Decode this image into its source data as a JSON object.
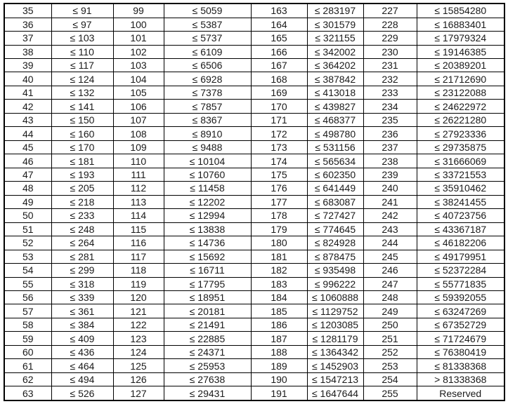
{
  "colors": {
    "border": "#000000",
    "text": "#1a1a1a",
    "background": "#ffffff"
  },
  "table": {
    "description": "index-threshold lookup table, four index/value column pairs",
    "rows": [
      [
        "35",
        "≤ 91",
        "99",
        "≤ 5059",
        "163",
        "≤ 283197",
        "227",
        "≤ 15854280"
      ],
      [
        "36",
        "≤ 97",
        "100",
        "≤ 5387",
        "164",
        "≤ 301579",
        "228",
        "≤ 16883401"
      ],
      [
        "37",
        "≤ 103",
        "101",
        "≤ 5737",
        "165",
        "≤ 321155",
        "229",
        "≤ 17979324"
      ],
      [
        "38",
        "≤ 110",
        "102",
        "≤ 6109",
        "166",
        "≤ 342002",
        "230",
        "≤ 19146385"
      ],
      [
        "39",
        "≤ 117",
        "103",
        "≤ 6506",
        "167",
        "≤ 364202",
        "231",
        "≤ 20389201"
      ],
      [
        "40",
        "≤ 124",
        "104",
        "≤ 6928",
        "168",
        "≤ 387842",
        "232",
        "≤ 21712690"
      ],
      [
        "41",
        "≤ 132",
        "105",
        "≤ 7378",
        "169",
        "≤ 413018",
        "233",
        "≤ 23122088"
      ],
      [
        "42",
        "≤ 141",
        "106",
        "≤ 7857",
        "170",
        "≤ 439827",
        "234",
        "≤ 24622972"
      ],
      [
        "43",
        "≤ 150",
        "107",
        "≤ 8367",
        "171",
        "≤ 468377",
        "235",
        "≤ 26221280"
      ],
      [
        "44",
        "≤ 160",
        "108",
        "≤ 8910",
        "172",
        "≤ 498780",
        "236",
        "≤ 27923336"
      ],
      [
        "45",
        "≤ 170",
        "109",
        "≤ 9488",
        "173",
        "≤ 531156",
        "237",
        "≤ 29735875"
      ],
      [
        "46",
        "≤ 181",
        "110",
        "≤ 10104",
        "174",
        "≤ 565634",
        "238",
        "≤ 31666069"
      ],
      [
        "47",
        "≤ 193",
        "111",
        "≤ 10760",
        "175",
        "≤ 602350",
        "239",
        "≤ 33721553"
      ],
      [
        "48",
        "≤ 205",
        "112",
        "≤ 11458",
        "176",
        "≤ 641449",
        "240",
        "≤ 35910462"
      ],
      [
        "49",
        "≤ 218",
        "113",
        "≤ 12202",
        "177",
        "≤ 683087",
        "241",
        "≤ 38241455"
      ],
      [
        "50",
        "≤ 233",
        "114",
        "≤ 12994",
        "178",
        "≤ 727427",
        "242",
        "≤ 40723756"
      ],
      [
        "51",
        "≤ 248",
        "115",
        "≤ 13838",
        "179",
        "≤ 774645",
        "243",
        "≤ 43367187"
      ],
      [
        "52",
        "≤ 264",
        "116",
        "≤ 14736",
        "180",
        "≤ 824928",
        "244",
        "≤ 46182206"
      ],
      [
        "53",
        "≤ 281",
        "117",
        "≤ 15692",
        "181",
        "≤ 878475",
        "245",
        "≤ 49179951"
      ],
      [
        "54",
        "≤ 299",
        "118",
        "≤ 16711",
        "182",
        "≤ 935498",
        "246",
        "≤ 52372284"
      ],
      [
        "55",
        "≤ 318",
        "119",
        "≤ 17795",
        "183",
        "≤ 996222",
        "247",
        "≤ 55771835"
      ],
      [
        "56",
        "≤ 339",
        "120",
        "≤ 18951",
        "184",
        "≤ 1060888",
        "248",
        "≤ 59392055"
      ],
      [
        "57",
        "≤ 361",
        "121",
        "≤ 20181",
        "185",
        "≤ 1129752",
        "249",
        "≤ 63247269"
      ],
      [
        "58",
        "≤ 384",
        "122",
        "≤ 21491",
        "186",
        "≤ 1203085",
        "250",
        "≤ 67352729"
      ],
      [
        "59",
        "≤ 409",
        "123",
        "≤ 22885",
        "187",
        "≤ 1281179",
        "251",
        "≤ 71724679"
      ],
      [
        "60",
        "≤ 436",
        "124",
        "≤ 24371",
        "188",
        "≤ 1364342",
        "252",
        "≤ 76380419"
      ],
      [
        "61",
        "≤ 464",
        "125",
        "≤ 25953",
        "189",
        "≤ 1452903",
        "253",
        "≤ 81338368"
      ],
      [
        "62",
        "≤ 494",
        "126",
        "≤ 27638",
        "190",
        "≤ 1547213",
        "254",
        "> 81338368"
      ],
      [
        "63",
        "≤ 526",
        "127",
        "≤ 29431",
        "191",
        "≤ 1647644",
        "255",
        "Reserved"
      ]
    ]
  }
}
